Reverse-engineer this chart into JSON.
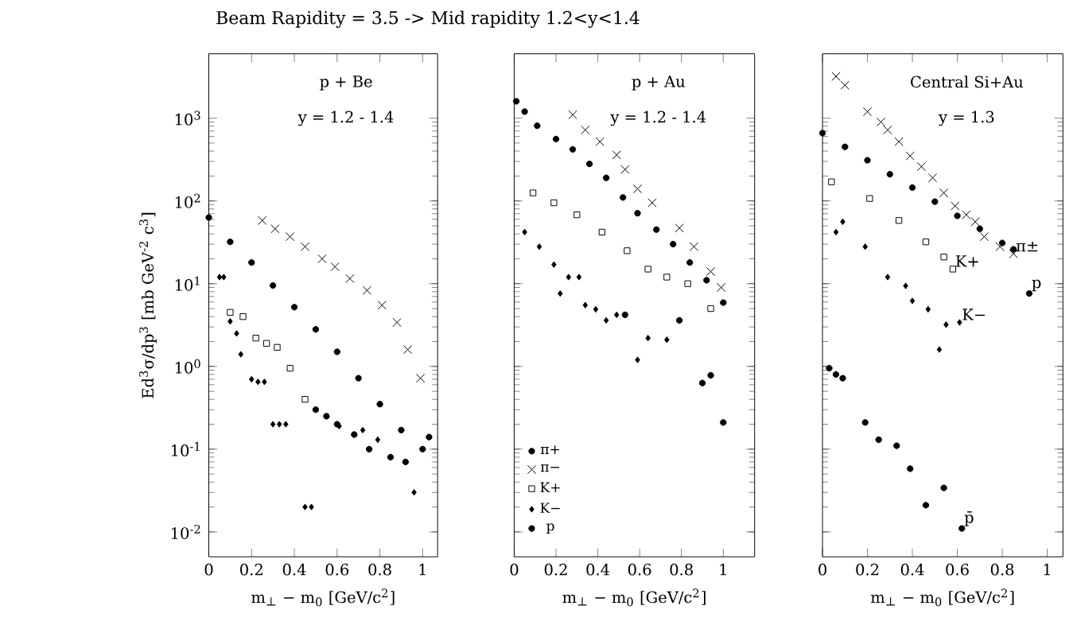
{
  "chart_data": [
    {
      "type": "scatter",
      "title": "Beam Rapidity = 3.5 -> Mid rapidity 1.2<y<1.4",
      "xlabel": "m$_{⊥}$ − m$_{0}$ [GeV/c$^{2}$]",
      "ylabel": "Ed$^{3}$σ/dp$^{3}$ [mb GeV$^{-2}$ c$^{3}$]",
      "annotations": [
        "p + Be",
        "y = 1.2 - 1.4"
      ],
      "log": "y",
      "xlim": [
        0,
        1.07
      ],
      "ylim": [
        0.005,
        6000
      ],
      "xticks": [
        0,
        0.2,
        0.4,
        0.6,
        0.8,
        1
      ],
      "yticks": [
        {
          "value": 0.01,
          "label": "10$^{-2}$"
        },
        {
          "value": 0.1,
          "label": "10$^{-1}$"
        },
        {
          "value": 1,
          "label": "10$^{0}$"
        },
        {
          "value": 10,
          "label": "10$^{1}$"
        },
        {
          "value": 100,
          "label": "10$^{2}$"
        },
        {
          "value": 1000,
          "label": "10$^{3}$"
        }
      ],
      "series": [
        {
          "color": "#000000",
          "marker": "circle",
          "x": [
            0,
            0.1,
            0.2,
            0.3,
            0.4,
            0.5,
            0.6,
            0.7,
            0.8,
            0.9,
            1.0
          ],
          "values": [
            63,
            32,
            18,
            9.5,
            5.2,
            2.8,
            1.5,
            0.72,
            0.35,
            0.17,
            0.1
          ]
        },
        {
          "color": "#000000",
          "marker": "cross",
          "x": [
            0.25,
            0.31,
            0.38,
            0.45,
            0.53,
            0.59,
            0.66,
            0.74,
            0.81,
            0.88,
            0.93,
            0.99
          ],
          "values": [
            58,
            46,
            37,
            28,
            20,
            16,
            11.5,
            8.3,
            5.5,
            3.4,
            1.6,
            0.72
          ]
        },
        {
          "color": "#000000",
          "marker": "square",
          "x": [
            0.1,
            0.16,
            0.22,
            0.27,
            0.32,
            0.38,
            0.45
          ],
          "values": [
            4.5,
            4,
            2.2,
            1.9,
            1.7,
            0.95,
            0.4
          ]
        },
        {
          "color": "#000000",
          "marker": "diamond",
          "x": [
            0.05,
            0.07,
            0.1,
            0.13,
            0.15,
            0.2,
            0.23,
            0.26,
            0.3,
            0.33,
            0.36,
            0.45,
            0.48,
            0.61,
            0.72,
            0.79,
            0.96
          ],
          "values": [
            12,
            12,
            3.5,
            2.5,
            1.4,
            0.7,
            0.65,
            0.65,
            0.2,
            0.2,
            0.2,
            0.02,
            0.02,
            0.19,
            0.17,
            0.13,
            0.03
          ]
        },
        {
          "color": "#000000",
          "marker": "circle",
          "x": [
            0.5,
            0.55,
            0.6,
            0.68,
            0.75,
            0.85,
            0.92,
            1.03
          ],
          "values": [
            0.3,
            0.25,
            0.2,
            0.15,
            0.1,
            0.08,
            0.07,
            0.14
          ]
        }
      ]
    },
    {
      "type": "scatter",
      "xlabel": "m$_{⊥}$ − m$_{0}$ [GeV/c$^{2}$]",
      "annotations": [
        "p + Au",
        "y = 1.2 - 1.4"
      ],
      "log": "y",
      "xlim": [
        0,
        1.15
      ],
      "ylim": [
        0.005,
        6000
      ],
      "tick_labels": "x",
      "legend": "bottom left",
      "xticks": [
        0,
        0.2,
        0.4,
        0.6,
        0.8,
        1
      ],
      "yticks": [
        {
          "value": 0.01,
          "label": null
        },
        {
          "value": 0.1,
          "label": null
        },
        {
          "value": 1,
          "label": null
        },
        {
          "value": 10,
          "label": null
        },
        {
          "value": 100,
          "label": null
        },
        {
          "value": 1000,
          "label": null
        }
      ],
      "series": [
        {
          "name": "π+",
          "color": "#000000",
          "marker": "circle",
          "x": [
            0.01,
            0.05,
            0.11,
            0.2,
            0.28,
            0.36,
            0.44,
            0.52,
            0.59,
            0.68,
            0.76,
            0.84,
            0.92,
            1.0
          ],
          "values": [
            1600,
            1200,
            810,
            560,
            420,
            280,
            190,
            110,
            71,
            45,
            30,
            18,
            11,
            5.9
          ]
        },
        {
          "name": "π−",
          "color": "#000000",
          "marker": "cross",
          "x": [
            0.28,
            0.34,
            0.41,
            0.49,
            0.53,
            0.59,
            0.66,
            0.79,
            0.86,
            0.94,
            0.99
          ],
          "values": [
            1100,
            720,
            520,
            360,
            240,
            140,
            95,
            47,
            28,
            14,
            9
          ]
        },
        {
          "name": "K+",
          "color": "#000000",
          "marker": "square",
          "x": [
            0.09,
            0.19,
            0.3,
            0.42,
            0.54,
            0.64,
            0.73,
            0.83,
            0.94
          ],
          "values": [
            125,
            95,
            68,
            42,
            25,
            15,
            12,
            10,
            5
          ]
        },
        {
          "name": "K−",
          "color": "#000000",
          "marker": "diamond",
          "x": [
            0.05,
            0.12,
            0.19,
            0.22,
            0.26,
            0.31,
            0.34,
            0.39,
            0.44,
            0.49,
            0.59,
            0.64,
            0.73
          ],
          "values": [
            42,
            28,
            17,
            7.6,
            12,
            12,
            5.5,
            4.9,
            3.6,
            4.2,
            1.2,
            2.2,
            2.1
          ]
        },
        {
          "name": "p",
          "color": "#000000",
          "marker": "circle",
          "x": [
            0.53,
            0.79,
            0.9,
            0.94,
            1.0
          ],
          "values": [
            4.2,
            3.6,
            0.63,
            0.78,
            0.21
          ]
        }
      ]
    },
    {
      "type": "scatter",
      "xlabel": "m$_{⊥}$ − m$_{0}$ [GeV/c$^{2}$]",
      "annotations": [
        "Central Si+Au",
        "y = 1.3"
      ],
      "log": "y",
      "xlim": [
        0,
        1.07
      ],
      "ylim": [
        0.005,
        6000
      ],
      "tick_labels": "x",
      "legend": "right",
      "xticks": [
        0,
        0.2,
        0.4,
        0.6,
        0.8,
        1
      ],
      "yticks": [
        {
          "value": 0.01,
          "label": null
        },
        {
          "value": 0.1,
          "label": null
        },
        {
          "value": 1,
          "label": null
        },
        {
          "value": 10,
          "label": null
        },
        {
          "value": 100,
          "label": null
        },
        {
          "value": 1000,
          "label": null
        }
      ],
      "series": [
        {
          "name": "π±",
          "color": "#000000",
          "marker": "cross",
          "x": [
            0.06,
            0.1,
            0.2,
            0.26,
            0.29,
            0.34,
            0.39,
            0.44,
            0.49,
            0.54,
            0.59,
            0.64,
            0.68,
            0.72,
            0.79,
            0.85
          ],
          "values": [
            3200,
            2500,
            1200,
            900,
            720,
            520,
            350,
            260,
            190,
            125,
            87,
            68,
            56,
            37,
            28,
            23
          ]
        },
        {
          "name": "p",
          "color": "#000000",
          "marker": "circle",
          "x": [
            0,
            0.1,
            0.2,
            0.3,
            0.4,
            0.5,
            0.6,
            0.7,
            0.8,
            0.85,
            0.92
          ],
          "values": [
            660,
            450,
            310,
            210,
            145,
            98,
            66,
            46,
            31,
            26,
            7.6
          ]
        },
        {
          "name": "K+",
          "color": "#000000",
          "marker": "square",
          "x": [
            0.04,
            0.21,
            0.34,
            0.46,
            0.54,
            0.58
          ],
          "values": [
            170,
            107,
            58,
            32,
            21,
            15
          ]
        },
        {
          "name": "K−",
          "color": "#000000",
          "marker": "diamond",
          "x": [
            0.06,
            0.09,
            0.19,
            0.29,
            0.37,
            0.4,
            0.47,
            0.52,
            0.55,
            0.61
          ],
          "values": [
            42,
            56,
            28,
            12,
            9.4,
            6.2,
            4.9,
            1.6,
            3.2,
            3.4
          ]
        },
        {
          "name": "p̄",
          "color": "#000000",
          "marker": "circle",
          "x": [
            0.03,
            0.06,
            0.09,
            0.19,
            0.25,
            0.33,
            0.39,
            0.46,
            0.54,
            0.62
          ],
          "values": [
            0.95,
            0.8,
            0.72,
            0.21,
            0.13,
            0.11,
            0.058,
            0.021,
            0.034,
            0.011
          ]
        }
      ]
    }
  ]
}
